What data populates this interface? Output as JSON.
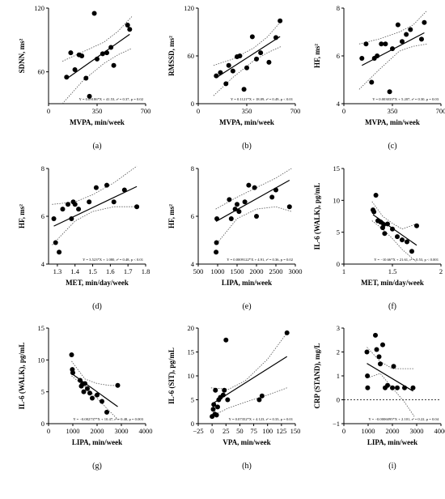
{
  "chart_data": [
    {
      "id": "a",
      "type": "scatter",
      "panel_label": "(a)",
      "xlabel": "MVPA, min/week",
      "ylabel": "SDNN, ms²",
      "xlim": [
        0,
        700
      ],
      "ylim": [
        30,
        120
      ],
      "xticks": [
        0,
        350,
        700
      ],
      "yticks": [
        60,
        120
      ],
      "points": [
        [
          130,
          55
        ],
        [
          160,
          78
        ],
        [
          190,
          62
        ],
        [
          220,
          76
        ],
        [
          240,
          75
        ],
        [
          270,
          54
        ],
        [
          295,
          37
        ],
        [
          330,
          115
        ],
        [
          350,
          72
        ],
        [
          390,
          77
        ],
        [
          420,
          78
        ],
        [
          450,
          83
        ],
        [
          470,
          66
        ],
        [
          570,
          104
        ],
        [
          585,
          100
        ]
      ],
      "fit": {
        "slope": 0.09186,
        "intercept": 41.53
      },
      "ci": {
        "upper": [
          [
            100,
            70
          ],
          [
            250,
            79
          ],
          [
            400,
            88
          ],
          [
            500,
            98
          ],
          [
            600,
            112
          ]
        ],
        "lower": [
          [
            100,
            30
          ],
          [
            250,
            52
          ],
          [
            400,
            68
          ],
          [
            500,
            76
          ],
          [
            600,
            82
          ]
        ]
      },
      "equation": "Y = 0.09186*X + 41.53, r² = 0.37, p = 0.02"
    },
    {
      "id": "b",
      "type": "scatter",
      "panel_label": "(b)",
      "xlabel": "MVPA, min/week",
      "ylabel": "RMSSD, ms²",
      "xlim": [
        0,
        700
      ],
      "ylim": [
        0,
        120
      ],
      "xticks": [
        0,
        350,
        700
      ],
      "yticks": [
        0,
        60,
        120
      ],
      "points": [
        [
          130,
          35
        ],
        [
          160,
          39
        ],
        [
          200,
          25
        ],
        [
          220,
          48
        ],
        [
          250,
          41
        ],
        [
          280,
          59
        ],
        [
          300,
          60
        ],
        [
          330,
          18
        ],
        [
          350,
          45
        ],
        [
          390,
          84
        ],
        [
          420,
          56
        ],
        [
          450,
          64
        ],
        [
          510,
          52
        ],
        [
          560,
          83
        ],
        [
          590,
          104
        ]
      ],
      "fit": {
        "slope": 0.1121,
        "intercept": 18.09
      },
      "ci": {
        "upper": [
          [
            110,
            48
          ],
          [
            250,
            56
          ],
          [
            400,
            70
          ],
          [
            500,
            84
          ],
          [
            600,
            104
          ]
        ],
        "lower": [
          [
            110,
            10
          ],
          [
            250,
            33
          ],
          [
            400,
            54
          ],
          [
            500,
            64
          ],
          [
            600,
            72
          ]
        ]
      },
      "equation": "Y = 0.1121*X + 18.09, r² = 0.49, p < 0.01"
    },
    {
      "id": "c",
      "type": "scatter",
      "panel_label": "(c)",
      "xlabel": "MVPA, min/week",
      "ylabel": "HF, ms²",
      "xlim": [
        0,
        700
      ],
      "ylim": [
        4,
        8
      ],
      "xticks": [
        0,
        350,
        700
      ],
      "yticks": [
        4,
        6,
        8
      ],
      "points": [
        [
          130,
          5.9
        ],
        [
          160,
          6.5
        ],
        [
          200,
          4.9
        ],
        [
          220,
          5.9
        ],
        [
          240,
          6.0
        ],
        [
          270,
          6.5
        ],
        [
          300,
          6.5
        ],
        [
          330,
          4.5
        ],
        [
          350,
          6.3
        ],
        [
          390,
          7.3
        ],
        [
          420,
          6.6
        ],
        [
          450,
          6.9
        ],
        [
          480,
          7.1
        ],
        [
          560,
          6.7
        ],
        [
          580,
          7.4
        ]
      ],
      "fit": {
        "slope": 0.003033,
        "intercept": 5.207
      },
      "ci": {
        "upper": [
          [
            110,
            6.5
          ],
          [
            250,
            6.7
          ],
          [
            400,
            7.0
          ],
          [
            500,
            7.3
          ],
          [
            600,
            7.9
          ]
        ],
        "lower": [
          [
            110,
            4.6
          ],
          [
            250,
            5.4
          ],
          [
            400,
            6.2
          ],
          [
            500,
            6.4
          ],
          [
            600,
            6.5
          ]
        ]
      },
      "equation": "Y = 0.003033*X + 5.207, r² = 0.30, p = 0.03"
    },
    {
      "id": "d",
      "type": "scatter",
      "panel_label": "(d)",
      "xlabel": "MET, min/day/week",
      "ylabel": "HF, ms²",
      "xlim": [
        1.25,
        1.8
      ],
      "ylim": [
        4,
        8
      ],
      "xticks": [
        1.3,
        1.4,
        1.5,
        1.6,
        1.7,
        1.8
      ],
      "yticks": [
        4,
        6,
        8
      ],
      "points": [
        [
          1.28,
          5.9
        ],
        [
          1.29,
          4.9
        ],
        [
          1.31,
          4.5
        ],
        [
          1.33,
          6.3
        ],
        [
          1.36,
          6.5
        ],
        [
          1.38,
          5.9
        ],
        [
          1.39,
          6.6
        ],
        [
          1.4,
          6.5
        ],
        [
          1.42,
          6.3
        ],
        [
          1.48,
          6.6
        ],
        [
          1.52,
          7.2
        ],
        [
          1.58,
          7.3
        ],
        [
          1.62,
          6.6
        ],
        [
          1.68,
          7.1
        ],
        [
          1.75,
          6.4
        ]
      ],
      "fit": {
        "slope": 3.523,
        "intercept": 1.08
      },
      "ci": {
        "upper": [
          [
            1.27,
            6.5
          ],
          [
            1.4,
            6.6
          ],
          [
            1.5,
            6.9
          ],
          [
            1.62,
            7.4
          ],
          [
            1.75,
            8.1
          ]
        ],
        "lower": [
          [
            1.27,
            4.8
          ],
          [
            1.4,
            5.8
          ],
          [
            1.5,
            6.2
          ],
          [
            1.62,
            6.4
          ],
          [
            1.75,
            6.4
          ]
        ]
      },
      "equation": "Y = 3.523*X + 1.080, r² = 0.48, p < 0.01"
    },
    {
      "id": "e",
      "type": "scatter",
      "panel_label": "(e)",
      "xlabel": "LIPA, min/week",
      "ylabel": "HF, ms²",
      "xlim": [
        500,
        3000
      ],
      "ylim": [
        4,
        8
      ],
      "xticks": [
        500,
        1000,
        1500,
        2000,
        2500,
        3000
      ],
      "yticks": [
        4,
        6,
        8
      ],
      "points": [
        [
          960,
          4.5
        ],
        [
          970,
          4.9
        ],
        [
          980,
          5.9
        ],
        [
          1300,
          6.7
        ],
        [
          1350,
          5.9
        ],
        [
          1450,
          6.3
        ],
        [
          1500,
          6.5
        ],
        [
          1550,
          6.2
        ],
        [
          1700,
          6.6
        ],
        [
          1800,
          7.3
        ],
        [
          1950,
          7.2
        ],
        [
          2000,
          6.0
        ],
        [
          2400,
          6.8
        ],
        [
          2500,
          7.1
        ],
        [
          2850,
          6.4
        ]
      ],
      "fit": {
        "slope": 0.0009122,
        "intercept": 4.91
      },
      "ci": {
        "upper": [
          [
            950,
            6.3
          ],
          [
            1500,
            6.8
          ],
          [
            2000,
            7.2
          ],
          [
            2500,
            7.6
          ],
          [
            2900,
            8.0
          ]
        ],
        "lower": [
          [
            950,
            4.8
          ],
          [
            1500,
            5.9
          ],
          [
            2000,
            6.3
          ],
          [
            2500,
            6.4
          ],
          [
            2900,
            6.2
          ]
        ]
      },
      "equation": "Y = 0.0009122*X + 4.91, r² = 0.36, p = 0.02"
    },
    {
      "id": "f",
      "type": "scatter",
      "panel_label": "(f)",
      "xlabel": "MET, min/day/week",
      "ylabel": "IL-6 (WALK), pg/mL",
      "xlim": [
        1.0,
        2.0
      ],
      "ylim": [
        0,
        15
      ],
      "xticks": [
        1.0,
        1.5,
        2.0
      ],
      "yticks": [
        0,
        5,
        10,
        15
      ],
      "points": [
        [
          1.3,
          8.5
        ],
        [
          1.31,
          8.2
        ],
        [
          1.33,
          10.8
        ],
        [
          1.35,
          6.8
        ],
        [
          1.38,
          6.6
        ],
        [
          1.4,
          5.7
        ],
        [
          1.41,
          6.2
        ],
        [
          1.42,
          4.8
        ],
        [
          1.45,
          6.3
        ],
        [
          1.5,
          5.5
        ],
        [
          1.55,
          4.3
        ],
        [
          1.6,
          3.8
        ],
        [
          1.65,
          3.5
        ],
        [
          1.7,
          2.0
        ],
        [
          1.75,
          6.0
        ]
      ],
      "fit": {
        "slope": -10.66,
        "intercept": 21.61
      },
      "ci": {
        "upper": [
          [
            1.29,
            9.8
          ],
          [
            1.4,
            7.5
          ],
          [
            1.5,
            6.4
          ],
          [
            1.6,
            5.5
          ],
          [
            1.75,
            6.3
          ]
        ],
        "lower": [
          [
            1.29,
            6.8
          ],
          [
            1.4,
            5.5
          ],
          [
            1.5,
            4.0
          ],
          [
            1.6,
            2.3
          ],
          [
            1.75,
            0.3
          ]
        ]
      },
      "equation": "Y = −10.66*X + 21.61, r² = 0.53, p < 0.001"
    },
    {
      "id": "g",
      "type": "scatter",
      "panel_label": "(g)",
      "xlabel": "LIPA, min/week",
      "ylabel": "IL-6 (WALK), pg/mL",
      "xlim": [
        0,
        4000
      ],
      "ylim": [
        0,
        15
      ],
      "xticks": [
        0,
        1000,
        2000,
        3000,
        4000
      ],
      "yticks": [
        0,
        5,
        10,
        15
      ],
      "points": [
        [
          950,
          10.8
        ],
        [
          980,
          8.5
        ],
        [
          1000,
          8.0
        ],
        [
          1300,
          6.8
        ],
        [
          1350,
          5.9
        ],
        [
          1400,
          6.2
        ],
        [
          1450,
          5.0
        ],
        [
          1500,
          6.3
        ],
        [
          1600,
          5.5
        ],
        [
          1700,
          4.8
        ],
        [
          1800,
          4.0
        ],
        [
          2000,
          4.5
        ],
        [
          2200,
          3.5
        ],
        [
          2400,
          1.8
        ],
        [
          2850,
          6.0
        ]
      ],
      "fit": {
        "slope": -0.002737,
        "intercept": 10.47
      },
      "ci": {
        "upper": [
          [
            950,
            9.8
          ],
          [
            1500,
            7.0
          ],
          [
            2000,
            6.3
          ],
          [
            2500,
            6.0
          ],
          [
            2900,
            6.0
          ]
        ],
        "lower": [
          [
            950,
            7.5
          ],
          [
            1500,
            5.8
          ],
          [
            2000,
            4.0
          ],
          [
            2500,
            2.0
          ],
          [
            2900,
            0.5
          ]
        ]
      },
      "equation": "Y = −0.002737*X + 10.47, r² = 0.48, p = 0.003"
    },
    {
      "id": "h",
      "type": "scatter",
      "panel_label": "(h)",
      "xlabel": "VPA, min/week",
      "ylabel": "IL-6 (SIT), pg/mL",
      "xlim": [
        -25,
        150
      ],
      "ylim": [
        0,
        20
      ],
      "xticks": [
        -25,
        0,
        25,
        50,
        75,
        100,
        125,
        150
      ],
      "yticks": [
        0,
        5,
        10,
        15,
        20
      ],
      "points": [
        [
          0,
          1.5
        ],
        [
          2,
          3.0
        ],
        [
          3,
          4.0
        ],
        [
          5,
          2.0
        ],
        [
          6,
          7.0
        ],
        [
          8,
          1.8
        ],
        [
          10,
          3.5
        ],
        [
          12,
          5.0
        ],
        [
          15,
          5.5
        ],
        [
          20,
          6.0
        ],
        [
          22,
          7.0
        ],
        [
          25,
          17.5
        ],
        [
          28,
          5.0
        ],
        [
          85,
          5.0
        ],
        [
          90,
          5.8
        ],
        [
          135,
          19.0
        ]
      ],
      "fit": {
        "slope": 0.07352,
        "intercept": 4.123
      },
      "ci": {
        "upper": [
          [
            -2,
            7.5
          ],
          [
            30,
            7.2
          ],
          [
            60,
            9.0
          ],
          [
            100,
            13.5
          ],
          [
            135,
            19.0
          ]
        ],
        "lower": [
          [
            -2,
            1.5
          ],
          [
            30,
            3.3
          ],
          [
            60,
            4.5
          ],
          [
            100,
            6.0
          ],
          [
            135,
            7.5
          ]
        ]
      },
      "equation": "Y = 0.07352*X + 4.123, r² = 0.33, p = 0.01"
    },
    {
      "id": "i",
      "type": "scatter",
      "panel_label": "(i)",
      "xlabel": "LIPA, min/week",
      "ylabel": "CRP (STAND), mg/L",
      "xlim": [
        0,
        4000
      ],
      "ylim": [
        -1,
        3
      ],
      "xticks": [
        0,
        1000,
        2000,
        3000,
        4000
      ],
      "yticks": [
        -1,
        0,
        1,
        2,
        3
      ],
      "points": [
        [
          950,
          2.0
        ],
        [
          970,
          1.0
        ],
        [
          980,
          0.5
        ],
        [
          1300,
          2.7
        ],
        [
          1350,
          2.1
        ],
        [
          1450,
          1.8
        ],
        [
          1500,
          1.5
        ],
        [
          1600,
          2.3
        ],
        [
          1700,
          0.5
        ],
        [
          1800,
          0.6
        ],
        [
          2000,
          0.5
        ],
        [
          2050,
          1.4
        ],
        [
          2200,
          0.5
        ],
        [
          2500,
          0.5
        ],
        [
          2850,
          0.5
        ]
      ],
      "fit": {
        "slope": -0.0006095,
        "intercept": 2.101
      },
      "ci": {
        "upper": [
          [
            950,
            2.2
          ],
          [
            1500,
            1.6
          ],
          [
            2000,
            1.3
          ],
          [
            2500,
            1.3
          ],
          [
            2900,
            1.3
          ]
        ],
        "lower": [
          [
            950,
            0.9
          ],
          [
            1500,
            1.1
          ],
          [
            2000,
            0.5
          ],
          [
            2500,
            -0.1
          ],
          [
            2900,
            -0.7
          ]
        ]
      },
      "zero_line": true,
      "equation": "Y = −0.0006095*X + 2.101, r² = 0.22, p = 0.04"
    }
  ]
}
